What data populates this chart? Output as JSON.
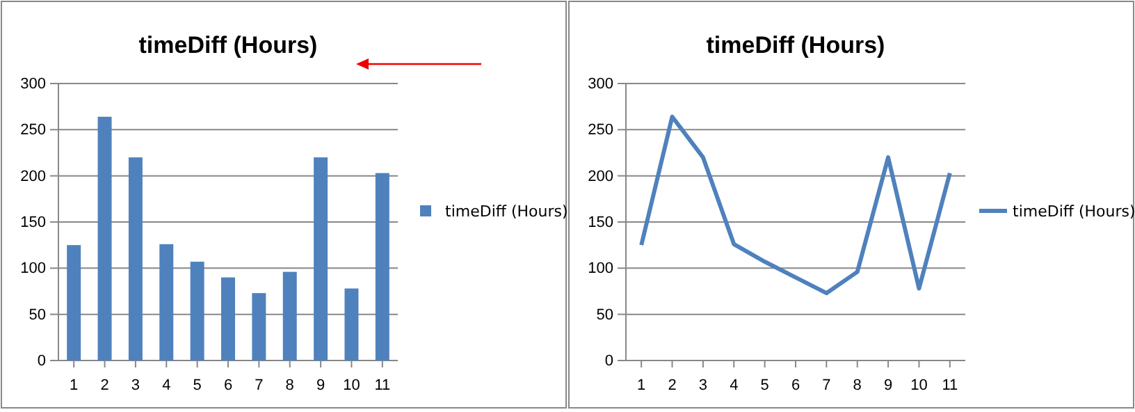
{
  "chart_data": [
    {
      "type": "bar",
      "title": "timeDiff (Hours)",
      "categories": [
        "1",
        "2",
        "3",
        "4",
        "5",
        "6",
        "7",
        "8",
        "9",
        "10",
        "11"
      ],
      "series": [
        {
          "name": "timeDiff (Hours)",
          "color": "#4f81bd",
          "values": [
            125,
            264,
            220,
            126,
            107,
            90,
            73,
            96,
            220,
            78,
            203
          ]
        }
      ],
      "ylim": [
        0,
        300
      ],
      "yticks": [
        0,
        50,
        100,
        150,
        200,
        250,
        300
      ],
      "grid": "y",
      "legend": "right"
    },
    {
      "type": "line",
      "title": "timeDiff (Hours)",
      "categories": [
        "1",
        "2",
        "3",
        "4",
        "5",
        "6",
        "7",
        "8",
        "9",
        "10",
        "11"
      ],
      "series": [
        {
          "name": "timeDiff (Hours)",
          "color": "#4f81bd",
          "values": [
            125,
            264,
            220,
            126,
            107,
            90,
            73,
            96,
            220,
            78,
            203
          ]
        }
      ],
      "ylim": [
        0,
        300
      ],
      "yticks": [
        0,
        50,
        100,
        150,
        200,
        250,
        300
      ],
      "grid": "y",
      "legend": "right",
      "marker": "none"
    }
  ]
}
